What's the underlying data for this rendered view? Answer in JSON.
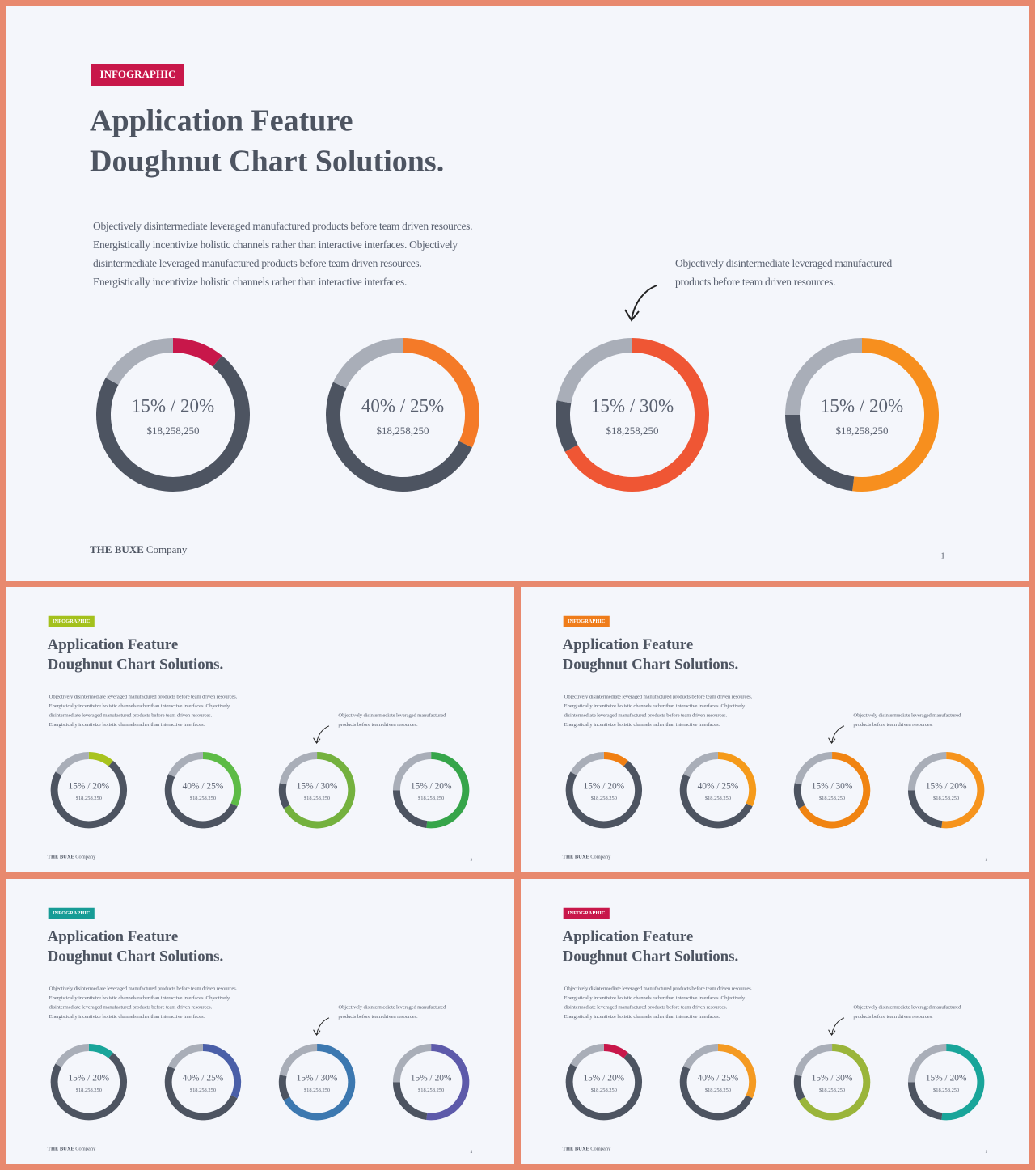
{
  "dark_color": "#4d5461",
  "light_color": "#a9aeb8",
  "slides": [
    {
      "tag": "INFOGRAPHIC",
      "tag_color": "#c8174a",
      "title": [
        "Application Feature",
        "Doughnut Chart Solutions."
      ],
      "paragraph": [
        "Objectively disintermediate leveraged manufactured products before team driven resources.",
        "Energistically incentivize holistic channels rather than interactive interfaces. Objectively",
        "disintermediate leveraged manufactured products before team driven resources.",
        "Energistically incentivize holistic channels rather than interactive interfaces."
      ],
      "note": [
        "Objectively disintermediate leveraged manufactured",
        "products before team driven resources."
      ],
      "donuts": [
        {
          "label": "15% / 20%",
          "amount": "$18,258,250",
          "color": "#c8174a",
          "values": [
            11,
            72,
            17
          ]
        },
        {
          "label": "40% / 25%",
          "amount": "$18,258,250",
          "color": "#f47a28",
          "values": [
            32,
            50,
            18
          ]
        },
        {
          "label": "15% / 30%",
          "amount": "$18,258,250",
          "color": "#ef5634",
          "values": [
            67,
            11,
            22
          ]
        },
        {
          "label": "15% / 20%",
          "amount": "$18,258,250",
          "color": "#f78f1e",
          "values": [
            52,
            23,
            25
          ]
        }
      ],
      "brand": "THE BUXE",
      "brand_suffix": "Company",
      "page": "1"
    },
    {
      "tag": "INFOGRAPHIC",
      "tag_color": "#a4c11d",
      "title": [
        "Application Feature",
        "Doughnut Chart Solutions."
      ],
      "paragraph": [
        "Objectively disintermediate leveraged manufactured products before team driven resources.",
        "Energistically incentivize holistic channels rather than interactive interfaces. Objectively",
        "disintermediate leveraged manufactured products before team driven resources.",
        "Energistically incentivize holistic channels rather than interactive interfaces."
      ],
      "note": [
        "Objectively disintermediate leveraged manufactured",
        "products before team driven resources."
      ],
      "donuts": [
        {
          "label": "15% / 20%",
          "amount": "$18,258,250",
          "color": "#a8c31e",
          "values": [
            11,
            72,
            17
          ]
        },
        {
          "label": "40% / 25%",
          "amount": "$18,258,250",
          "color": "#5dbb46",
          "values": [
            32,
            50,
            18
          ]
        },
        {
          "label": "15% / 30%",
          "amount": "$18,258,250",
          "color": "#74b13e",
          "values": [
            67,
            11,
            22
          ]
        },
        {
          "label": "15% / 20%",
          "amount": "$18,258,250",
          "color": "#36a54a",
          "values": [
            52,
            23,
            25
          ]
        }
      ],
      "brand": "THE BUXE",
      "brand_suffix": "Company",
      "page": "2"
    },
    {
      "tag": "INFOGRAPHIC",
      "tag_color": "#ef7c1a",
      "title": [
        "Application Feature",
        "Doughnut Chart Solutions."
      ],
      "paragraph": [
        "Objectively disintermediate leveraged manufactured products before team driven resources.",
        "Energistically incentivize holistic channels rather than interactive interfaces. Objectively",
        "disintermediate leveraged manufactured products before team driven resources.",
        "Energistically incentivize holistic channels rather than interactive interfaces."
      ],
      "note": [
        "Objectively disintermediate leveraged manufactured",
        "products before team driven resources."
      ],
      "donuts": [
        {
          "label": "15% / 20%",
          "amount": "$18,258,250",
          "color": "#f07f12",
          "values": [
            11,
            72,
            17
          ]
        },
        {
          "label": "40% / 25%",
          "amount": "$18,258,250",
          "color": "#f59a1a",
          "values": [
            32,
            50,
            18
          ]
        },
        {
          "label": "15% / 30%",
          "amount": "$18,258,250",
          "color": "#f08412",
          "values": [
            67,
            11,
            22
          ]
        },
        {
          "label": "15% / 20%",
          "amount": "$18,258,250",
          "color": "#f6941d",
          "values": [
            52,
            23,
            25
          ]
        }
      ],
      "brand": "THE BUXE",
      "brand_suffix": "Company",
      "page": "3"
    },
    {
      "tag": "INFOGRAPHIC",
      "tag_color": "#179c96",
      "title": [
        "Application Feature",
        "Doughnut Chart Solutions."
      ],
      "paragraph": [
        "Objectively disintermediate leveraged manufactured products before team driven resources.",
        "Energistically incentivize holistic channels rather than interactive interfaces. Objectively",
        "disintermediate leveraged manufactured products before team driven resources.",
        "Energistically incentivize holistic channels rather than interactive interfaces."
      ],
      "note": [
        "Objectively disintermediate leveraged manufactured",
        "products before team driven resources."
      ],
      "donuts": [
        {
          "label": "15% / 20%",
          "amount": "$18,258,250",
          "color": "#19a59a",
          "values": [
            11,
            72,
            17
          ]
        },
        {
          "label": "40% / 25%",
          "amount": "$18,258,250",
          "color": "#4a5fa8",
          "values": [
            32,
            50,
            18
          ]
        },
        {
          "label": "15% / 30%",
          "amount": "$18,258,250",
          "color": "#3c78b0",
          "values": [
            67,
            11,
            22
          ]
        },
        {
          "label": "15% / 20%",
          "amount": "$18,258,250",
          "color": "#5d5aaa",
          "values": [
            52,
            23,
            25
          ]
        }
      ],
      "brand": "THE BUXE",
      "brand_suffix": "Company",
      "page": "4"
    },
    {
      "tag": "INFOGRAPHIC",
      "tag_color": "#c8174a",
      "title": [
        "Application Feature",
        "Doughnut Chart Solutions."
      ],
      "paragraph": [
        "Objectively disintermediate leveraged manufactured products before team driven resources.",
        "Energistically incentivize holistic channels rather than interactive interfaces. Objectively",
        "disintermediate leveraged manufactured products before team driven resources.",
        "Energistically incentivize holistic channels rather than interactive interfaces."
      ],
      "note": [
        "Objectively disintermediate leveraged manufactured",
        "products before team driven resources."
      ],
      "donuts": [
        {
          "label": "15% / 20%",
          "amount": "$18,258,250",
          "color": "#c8174a",
          "values": [
            11,
            72,
            17
          ]
        },
        {
          "label": "40% / 25%",
          "amount": "$18,258,250",
          "color": "#f49a22",
          "values": [
            32,
            50,
            18
          ]
        },
        {
          "label": "15% / 30%",
          "amount": "$18,258,250",
          "color": "#9ab53a",
          "values": [
            67,
            11,
            22
          ]
        },
        {
          "label": "15% / 20%",
          "amount": "$18,258,250",
          "color": "#19a59a",
          "values": [
            52,
            23,
            25
          ]
        }
      ],
      "brand": "THE BUXE",
      "brand_suffix": "Company",
      "page": "5"
    }
  ]
}
